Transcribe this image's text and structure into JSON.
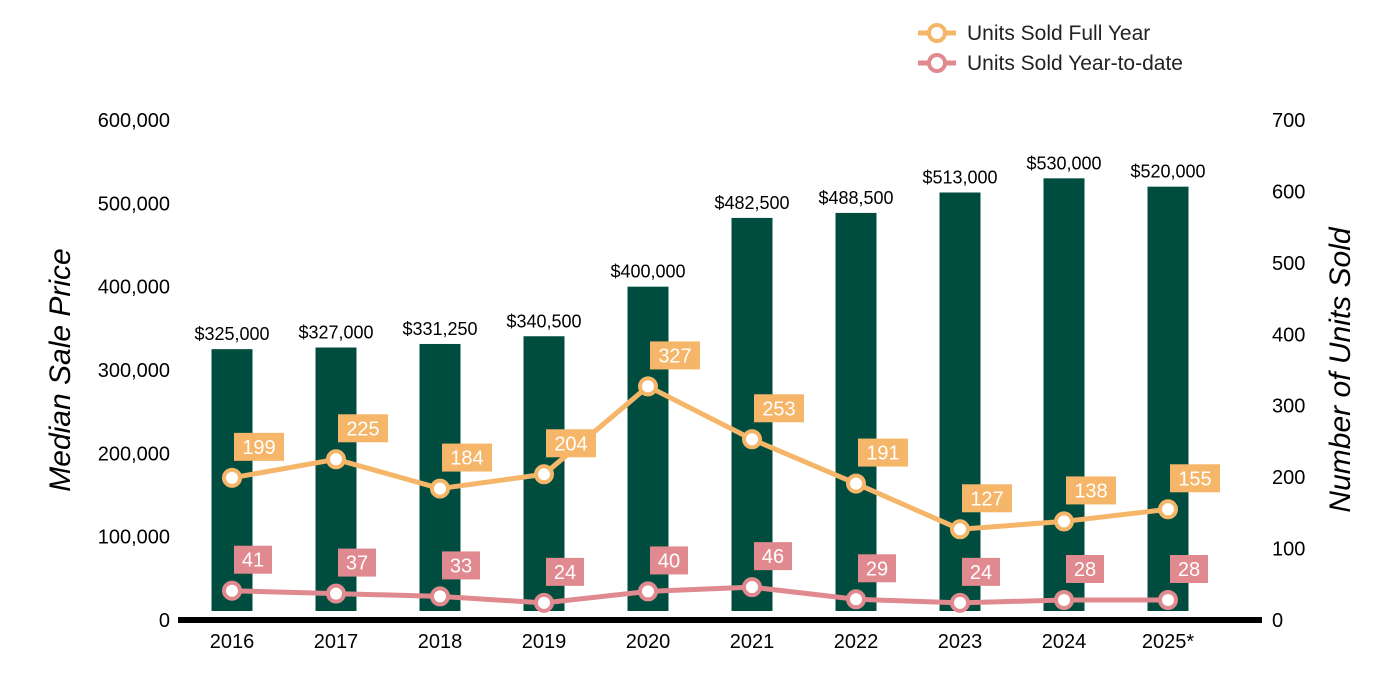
{
  "chart_data": {
    "type": "bar",
    "categories": [
      "2016",
      "2017",
      "2018",
      "2019",
      "2020",
      "2021",
      "2022",
      "2023",
      "2024",
      "2025*"
    ],
    "bars": {
      "values": [
        325000,
        327000,
        331250,
        340500,
        400000,
        482500,
        488500,
        513000,
        530000,
        520000
      ],
      "labels": [
        "$325,000",
        "$327,000",
        "$331,250",
        "$340,500",
        "$400,000",
        "$482,500",
        "$488,500",
        "$513,000",
        "$530,000",
        "$520,000"
      ],
      "color": "#004d40"
    },
    "series": [
      {
        "name": "Units Sold Full Year",
        "type": "line",
        "axis": "right",
        "color": "#f5b66a",
        "values": [
          199,
          225,
          184,
          204,
          327,
          253,
          191,
          127,
          138,
          155
        ]
      },
      {
        "name": "Units Sold Year-to-date",
        "type": "line",
        "axis": "right",
        "color": "#e08a8f",
        "values": [
          41,
          37,
          33,
          24,
          40,
          46,
          29,
          24,
          28,
          28
        ]
      }
    ],
    "ylabel": "Median Sale Price",
    "y2label": "Number of Units Sold",
    "ylim": [
      0,
      600000
    ],
    "y2lim": [
      0,
      700
    ],
    "yticks": [
      "0",
      "100,000",
      "200,000",
      "300,000",
      "400,000",
      "500,000",
      "600,000"
    ],
    "y2ticks": [
      "0",
      "100",
      "200",
      "300",
      "400",
      "500",
      "600",
      "700"
    ],
    "legend_position": "top-right",
    "grid": false
  }
}
